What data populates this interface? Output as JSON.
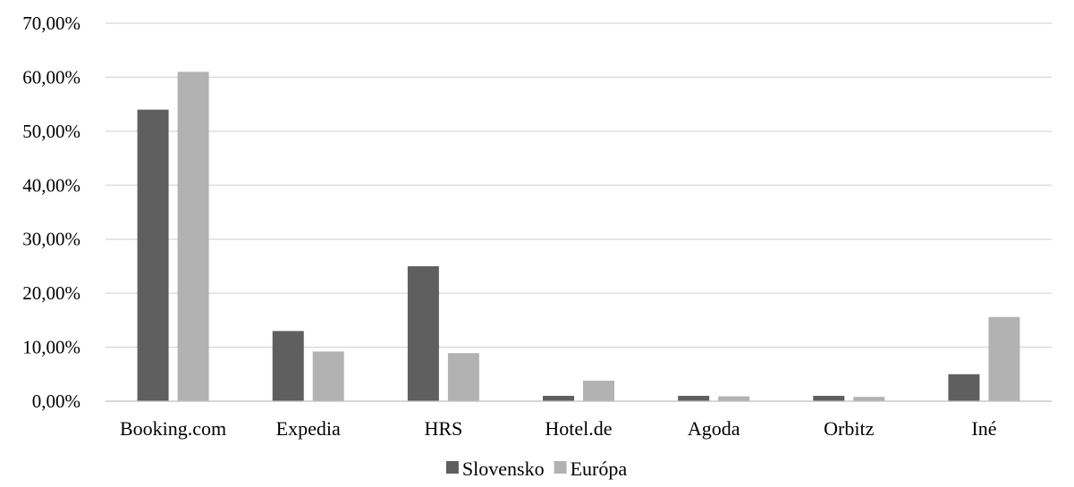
{
  "chart_data": {
    "type": "bar",
    "categories": [
      "Booking.com",
      "Expedia",
      "HRS",
      "Hotel.de",
      "Agoda",
      "Orbitz",
      "Iné"
    ],
    "series": [
      {
        "name": "Slovensko",
        "color": "#5f5f5f",
        "values": [
          54.0,
          13.0,
          25.0,
          1.0,
          1.0,
          1.0,
          5.0
        ]
      },
      {
        "name": "Európa",
        "color": "#b2b2b2",
        "values": [
          61.0,
          9.2,
          8.9,
          3.8,
          0.9,
          0.8,
          15.6
        ]
      }
    ],
    "yticks": [
      "0,00%",
      "10,00%",
      "20,00%",
      "30,00%",
      "40,00%",
      "50,00%",
      "60,00%",
      "70,00%"
    ],
    "ylim": [
      0,
      70
    ],
    "grid": true,
    "legend_position": "bottom"
  }
}
